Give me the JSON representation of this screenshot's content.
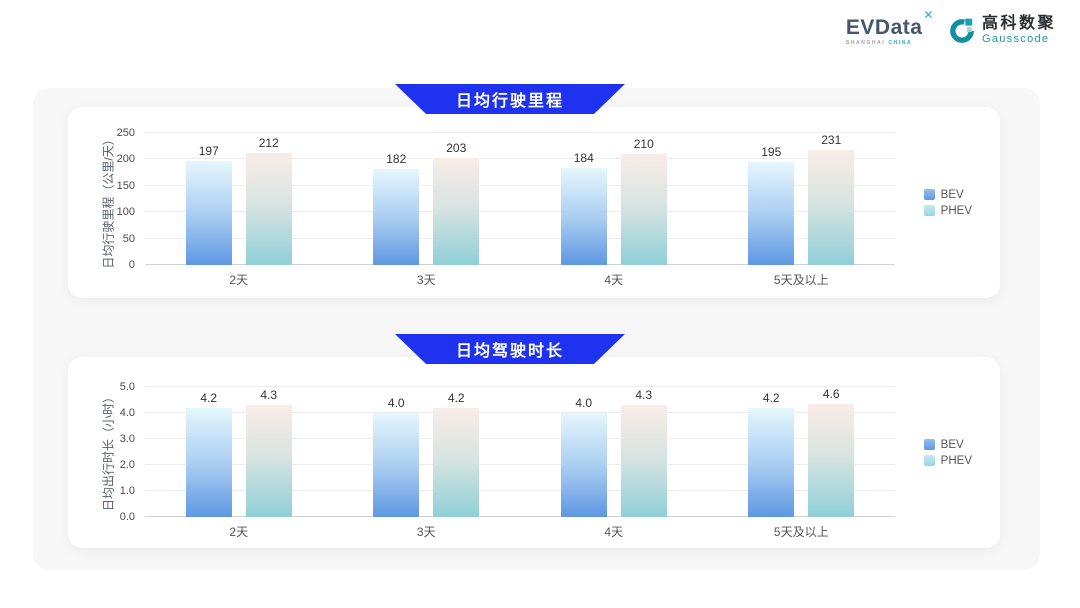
{
  "header": {
    "evdata_logo": {
      "text": "EVData",
      "superscript": "✕",
      "sub_left": "SHANGHAI",
      "sub_right": "CHINA"
    },
    "gausscode_logo": {
      "cn": "高科数聚",
      "en": "Gausscode"
    }
  },
  "colors": {
    "banner_blue": "#1e32f0",
    "panel_gray": "#f7f7f8",
    "bev_bar_top": "#e5f6fd",
    "bev_bar_bottom": "#5f97e3",
    "phev_bar_top": "#f9ece8",
    "phev_bar_bottom": "#8fcfd8",
    "gausscode_teal": "#1d9aa8",
    "evdata_blue": "#2aa9e0"
  },
  "chart_data": [
    {
      "type": "bar",
      "title": "日均行驶里程",
      "ylabel": "日均行驶里程（公里/天）",
      "xlabel": "",
      "ylim": [
        0,
        250
      ],
      "ytick_labels": [
        "0",
        "50",
        "100",
        "150",
        "200",
        "250"
      ],
      "categories": [
        "2天",
        "3天",
        "4天",
        "5天及以上"
      ],
      "series": [
        {
          "name": "BEV",
          "values": [
            197,
            182,
            184,
            195
          ],
          "labels": [
            "197",
            "182",
            "184",
            "195"
          ]
        },
        {
          "name": "PHEV",
          "values": [
            212,
            203,
            210,
            231
          ],
          "labels": [
            "212",
            "203",
            "210",
            "231"
          ]
        }
      ],
      "legend": [
        "BEV",
        "PHEV"
      ],
      "legend_position": "right",
      "grid": true
    },
    {
      "type": "bar",
      "title": "日均驾驶时长",
      "ylabel": "日均出行时长（小时）",
      "xlabel": "",
      "ylim": [
        0,
        5
      ],
      "ytick_labels": [
        "0.0",
        "1.0",
        "2.0",
        "3.0",
        "4.0",
        "5.0"
      ],
      "categories": [
        "2天",
        "3天",
        "4天",
        "5天及以上"
      ],
      "series": [
        {
          "name": "BEV",
          "values": [
            4.2,
            4.0,
            4.0,
            4.2
          ],
          "labels": [
            "4.2",
            "4.0",
            "4.0",
            "4.2"
          ]
        },
        {
          "name": "PHEV",
          "values": [
            4.3,
            4.2,
            4.3,
            4.6
          ],
          "labels": [
            "4.3",
            "4.2",
            "4.3",
            "4.6"
          ]
        }
      ],
      "legend": [
        "BEV",
        "PHEV"
      ],
      "legend_position": "right",
      "grid": true
    }
  ]
}
